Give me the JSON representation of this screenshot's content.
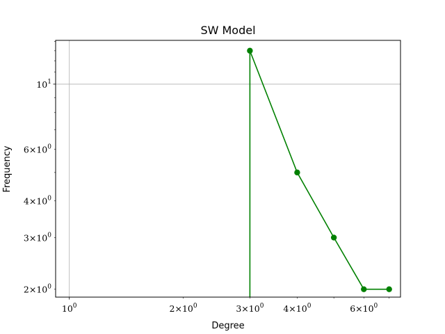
{
  "chart_data": {
    "type": "line",
    "title": "SW Model",
    "xlabel": "Degree",
    "ylabel": "Frequency",
    "xscale": "log",
    "yscale": "log",
    "xlim": [
      0.92,
      7.5
    ],
    "ylim": [
      1.88,
      14.1
    ],
    "grid": true,
    "color": "#008000",
    "marker": "circle",
    "x_ticks": [
      {
        "value": 1,
        "base": "10",
        "exp": "0"
      },
      {
        "value": 2,
        "base": "2×10",
        "exp": "0"
      },
      {
        "value": 3,
        "base": "3×10",
        "exp": "0"
      },
      {
        "value": 4,
        "base": "4×10",
        "exp": "0"
      },
      {
        "value": 6,
        "base": "6×10",
        "exp": "0"
      }
    ],
    "y_ticks": [
      {
        "value": 10,
        "base": "10",
        "exp": "1"
      },
      {
        "value": 6,
        "base": "6×10",
        "exp": "0"
      },
      {
        "value": 4,
        "base": "4×10",
        "exp": "0"
      },
      {
        "value": 3,
        "base": "3×10",
        "exp": "0"
      },
      {
        "value": 2,
        "base": "2×10",
        "exp": "0"
      }
    ],
    "series": [
      {
        "x": [
          3,
          3,
          4,
          5,
          6,
          7
        ],
        "y": [
          0,
          13,
          5,
          3,
          2,
          2
        ]
      }
    ]
  }
}
